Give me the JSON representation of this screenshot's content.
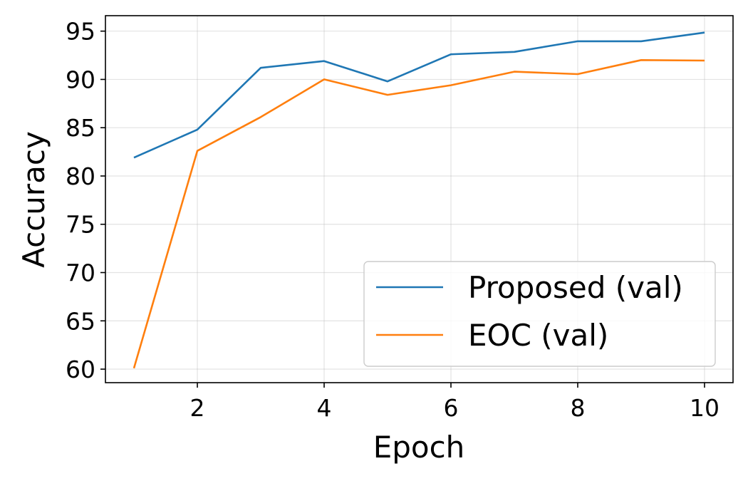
{
  "chart_data": {
    "type": "line",
    "xlabel": "Epoch",
    "ylabel": "Accuracy",
    "x": [
      1,
      2,
      3,
      4,
      5,
      6,
      7,
      8,
      9,
      10
    ],
    "xlim": [
      0.55,
      10.45
    ],
    "ylim": [
      58.6,
      96.6
    ],
    "xticks": [
      2,
      4,
      6,
      8,
      10
    ],
    "yticks": [
      60,
      65,
      70,
      75,
      80,
      85,
      90,
      95
    ],
    "grid": true,
    "legend_position": "lower-right",
    "series": [
      {
        "name": "Proposed (val)",
        "color": "#1f77b4",
        "values": [
          81.9,
          84.8,
          91.2,
          91.9,
          89.8,
          92.6,
          92.85,
          93.95,
          93.95,
          94.85
        ]
      },
      {
        "name": "EOC (val)",
        "color": "#ff7f0e",
        "values": [
          60.1,
          82.6,
          86.1,
          90.0,
          88.4,
          89.4,
          90.8,
          90.55,
          92.0,
          91.95
        ]
      }
    ]
  }
}
